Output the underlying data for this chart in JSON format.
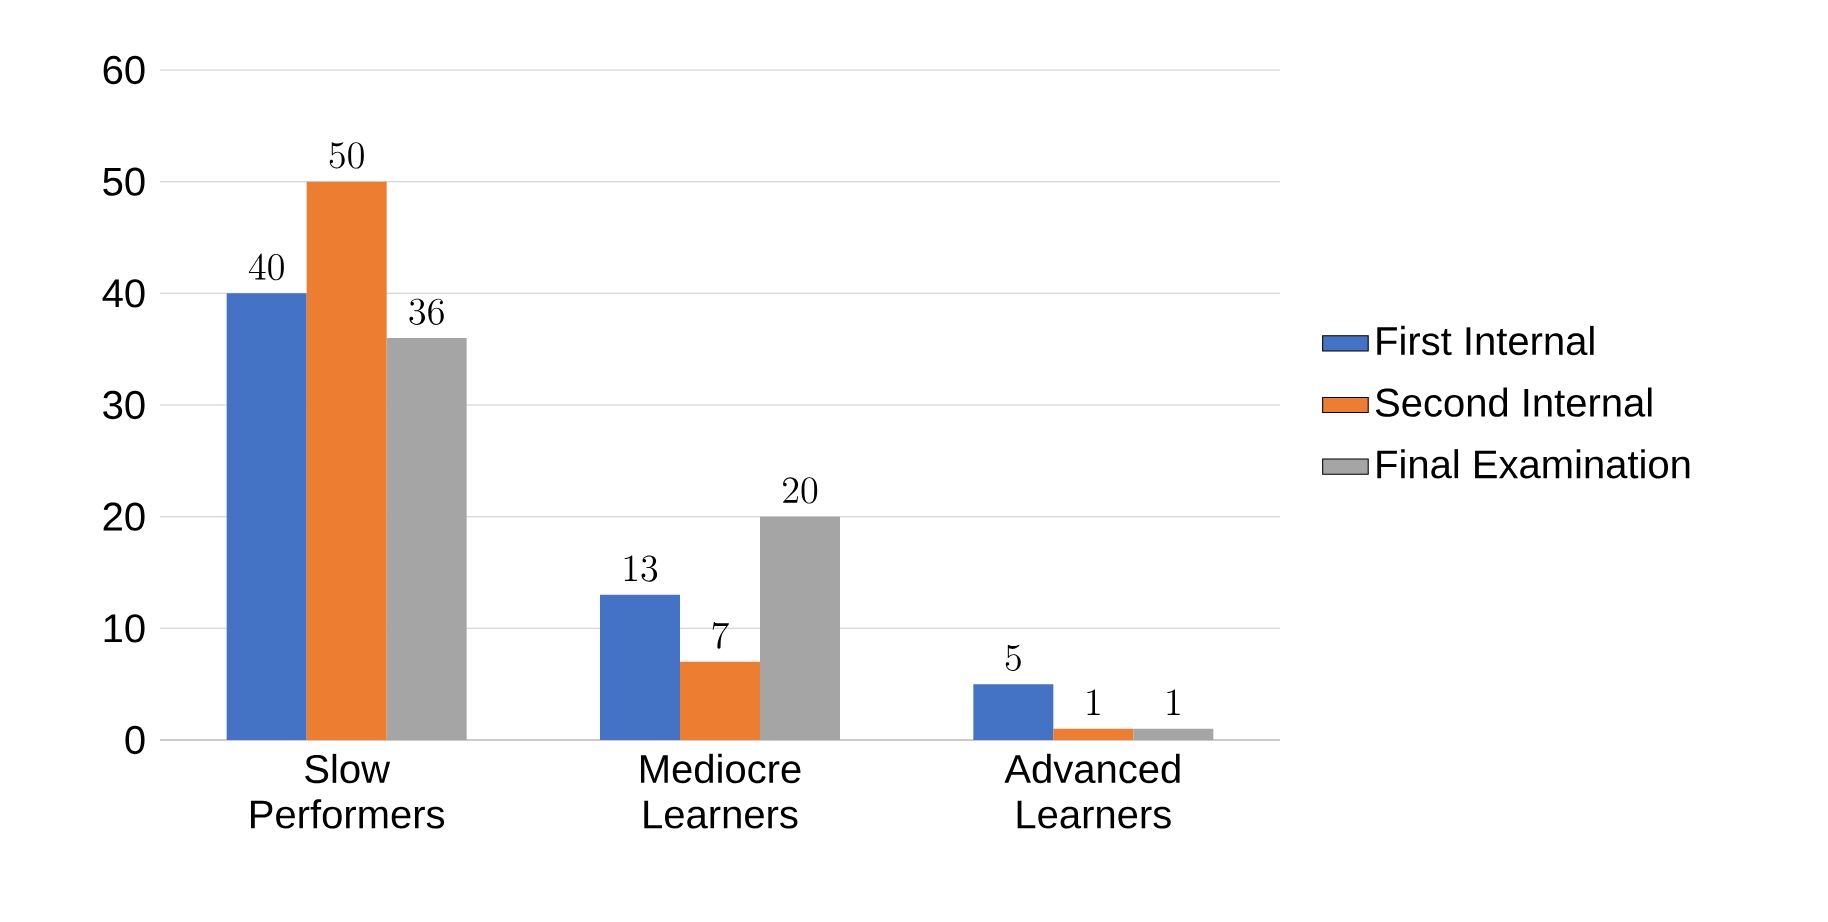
{
  "chart_data": {
    "type": "bar",
    "categories": [
      "Slow Performers",
      "Mediocre Learners",
      "Advanced Learners"
    ],
    "series": [
      {
        "name": "First Internal",
        "color": "#4472c4",
        "values": [
          40,
          13,
          5
        ]
      },
      {
        "name": "Second Internal",
        "color": "#ed7d31",
        "values": [
          50,
          7,
          1
        ]
      },
      {
        "name": "Final Examination",
        "color": "#a5a5a5",
        "values": [
          36,
          20,
          1
        ]
      }
    ],
    "ylim": [
      0,
      60
    ],
    "yticks": [
      0,
      10,
      20,
      30,
      40,
      50,
      60
    ],
    "grid": "y",
    "legend": "right",
    "data_labels": true
  }
}
